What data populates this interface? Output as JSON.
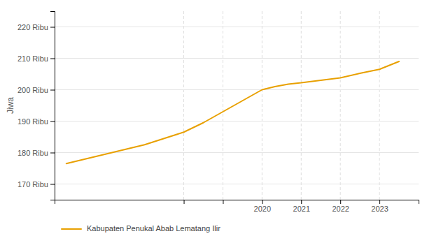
{
  "chart_data": {
    "type": "line",
    "ylabel": "Jiwa",
    "x": [
      2015.0,
      2015.5,
      2016.0,
      2016.5,
      2017.0,
      2017.5,
      2018.0,
      2018.5,
      2019.0,
      2019.5,
      2020.0,
      2020.33,
      2020.67,
      2021.0,
      2021.5,
      2022.0,
      2022.5,
      2023.0,
      2023.5
    ],
    "series": [
      {
        "name": "Kabupaten Penukal Abab Lematang Ilir",
        "color": "#E8A000",
        "values": [
          176500,
          178000,
          179500,
          181000,
          182500,
          184500,
          186500,
          189500,
          193000,
          196500,
          200000,
          201000,
          201800,
          202200,
          203000,
          203800,
          205200,
          206500,
          209000
        ]
      }
    ],
    "xlim": [
      2014.7,
      2024.0
    ],
    "xticks": [
      {
        "value": 2018,
        "label": null
      },
      {
        "value": 2019,
        "label": null
      },
      2020,
      2021,
      2022,
      2023
    ],
    "ylim": [
      165000,
      225000
    ],
    "yticks": [
      {
        "value": 170000,
        "label": "170 Ribu"
      },
      {
        "value": 180000,
        "label": "180 Ribu"
      },
      {
        "value": 190000,
        "label": "190 Ribu"
      },
      {
        "value": 200000,
        "label": "200 Ribu"
      },
      {
        "value": 210000,
        "label": "210 Ribu"
      },
      {
        "value": 220000,
        "label": "220 Ribu"
      }
    ],
    "grid": true,
    "legend": "bottom"
  }
}
